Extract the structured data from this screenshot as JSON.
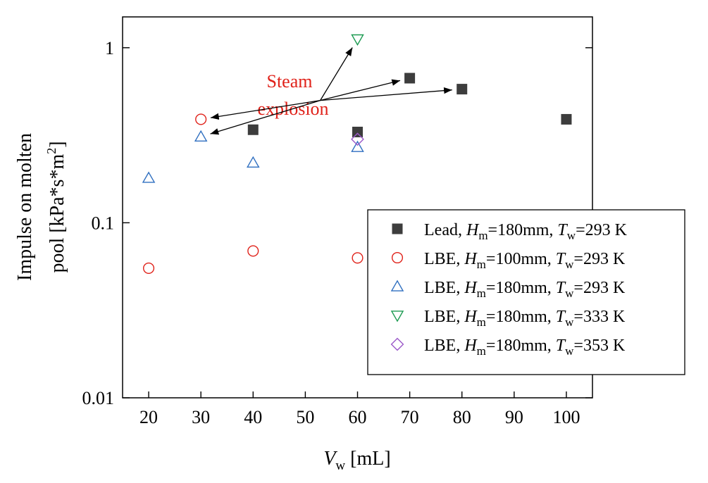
{
  "chart_data": {
    "type": "scatter",
    "x_axis": {
      "label_main": "V",
      "label_sub": "w",
      "label_unit": " [mL]",
      "range": [
        15,
        105
      ],
      "ticks": [
        20,
        30,
        40,
        50,
        60,
        70,
        80,
        90,
        100
      ],
      "tick_labels": [
        "20",
        "30",
        "40",
        "50",
        "60",
        "70",
        "80",
        "90",
        "100"
      ]
    },
    "y_axis": {
      "scale": "log",
      "label_line1": "Impulse on molten",
      "label_line2_pre": "pool [kPa*s*m",
      "label_line2_sup": "2",
      "label_line2_post": "]",
      "range": [
        0.01,
        1.5
      ],
      "ticks": [
        0.01,
        0.1,
        1
      ],
      "tick_labels": [
        "0.01",
        "0.1",
        "1"
      ]
    },
    "grid": false,
    "legend_position": "bottom-right",
    "series": [
      {
        "marker": "filled-square",
        "color": "#3d3d3d",
        "legend": {
          "pre": "Lead, ",
          "h": "H",
          "hsub": "m",
          "hval": "=180mm, ",
          "t": "T",
          "tsub": "w",
          "tval": "=293 K"
        },
        "x": [
          40,
          60,
          70,
          80,
          100
        ],
        "y": [
          0.34,
          0.33,
          0.67,
          0.58,
          0.39
        ]
      },
      {
        "marker": "open-circle",
        "color": "#e0221a",
        "legend": {
          "pre": "LBE, ",
          "h": "H",
          "hsub": "m",
          "hval": "=100mm, ",
          "t": "T",
          "tsub": "w",
          "tval": "=293 K"
        },
        "x": [
          20,
          30,
          40,
          60
        ],
        "y": [
          0.055,
          0.39,
          0.069,
          0.063
        ]
      },
      {
        "marker": "open-triangle-up",
        "color": "#2f6fc0",
        "legend": {
          "pre": "LBE, ",
          "h": "H",
          "hsub": "m",
          "hval": "=180mm, ",
          "t": "T",
          "tsub": "w",
          "tval": "=293 K"
        },
        "x": [
          20,
          30,
          40,
          60
        ],
        "y": [
          0.18,
          0.31,
          0.22,
          0.27
        ]
      },
      {
        "marker": "open-triangle-down",
        "color": "#1a9a50",
        "legend": {
          "pre": "LBE, ",
          "h": "H",
          "hsub": "m",
          "hval": "=180mm, ",
          "t": "T",
          "tsub": "w",
          "tval": "=333 K"
        },
        "x": [
          60
        ],
        "y": [
          1.12
        ]
      },
      {
        "marker": "open-diamond",
        "color": "#9b59c9",
        "legend": {
          "pre": "LBE, ",
          "h": "H",
          "hsub": "m",
          "hval": "=180mm, ",
          "t": "T",
          "tsub": "w",
          "tval": "=353 K"
        },
        "x": [
          60
        ],
        "y": [
          0.3
        ]
      }
    ],
    "annotation": {
      "lines": [
        "Steam",
        "explosion"
      ],
      "color": "#e0221a",
      "anchor": {
        "x": 53,
        "y": 0.5
      },
      "arrows_to": [
        {
          "x": 30,
          "y": 0.39
        },
        {
          "x": 30,
          "y": 0.31
        },
        {
          "x": 60,
          "y": 1.12
        },
        {
          "x": 70,
          "y": 0.67
        },
        {
          "x": 80,
          "y": 0.58
        }
      ]
    }
  }
}
